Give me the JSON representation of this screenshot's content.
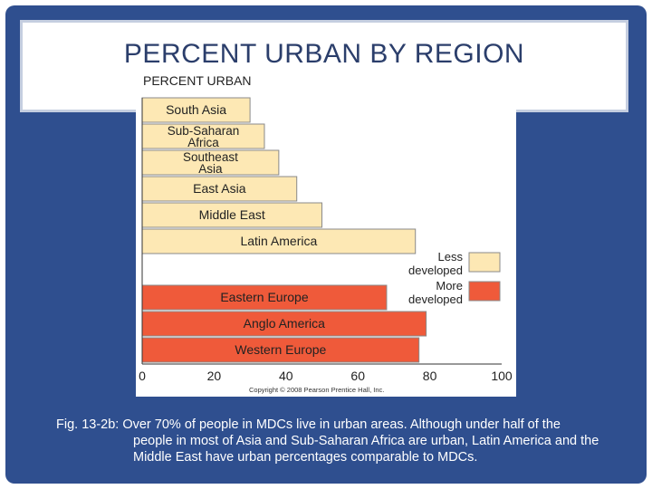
{
  "slide": {
    "title": "PERCENT URBAN BY REGION",
    "caption_line1": "Fig. 13-2b: Over 70% of people in MDCs live in urban areas.  Although under half of the",
    "caption_rest": "people in most of Asia and Sub-Saharan Africa are urban, Latin America and the Middle East have urban percentages comparable to MDCs."
  },
  "colors": {
    "frame": "#2f4f8f",
    "less_developed": "#fde8b4",
    "more_developed": "#ef5a3a"
  },
  "chart_data": {
    "type": "bar",
    "orientation": "horizontal",
    "title": "PERCENT URBAN",
    "xlim": [
      0,
      100
    ],
    "x_ticks": [
      "0",
      "20",
      "40",
      "60",
      "80",
      "100"
    ],
    "grid": false,
    "legend_position": "right",
    "series": [
      {
        "name": "Less developed",
        "color": "#fde8b4",
        "categories": [
          "South Asia",
          "Sub-Saharan Africa",
          "Southeast Asia",
          "East Asia",
          "Middle East",
          "Latin America"
        ],
        "values": [
          30,
          34,
          38,
          43,
          50,
          76
        ]
      },
      {
        "name": "More developed",
        "color": "#ef5a3a",
        "categories": [
          "Eastern Europe",
          "Anglo America",
          "Western Europe"
        ],
        "values": [
          68,
          79,
          77
        ]
      }
    ],
    "copyright": "Copyright © 2008 Pearson Prentice Hall, Inc."
  }
}
